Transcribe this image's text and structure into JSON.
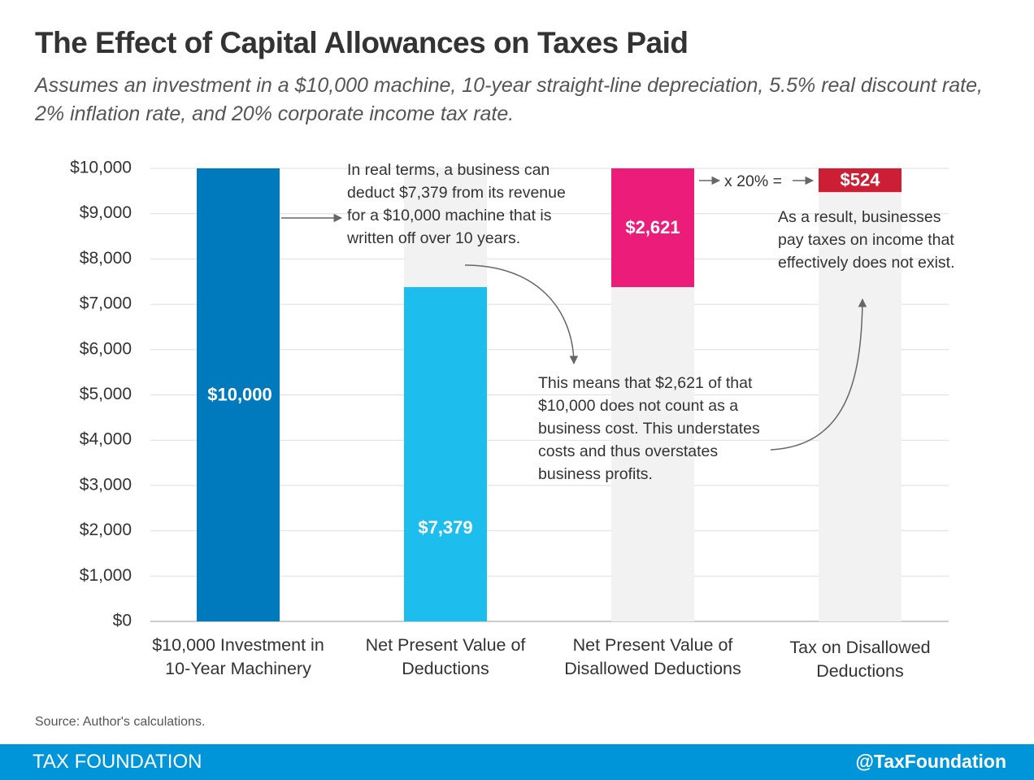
{
  "chart_data": {
    "type": "bar",
    "title": "The Effect of Capital Allowances on Taxes Paid",
    "subtitle": "Assumes an investment in a $10,000 machine, 10-year straight-line depreciation, 5.5% real discount rate, 2% inflation rate, and 20% corporate income tax rate.",
    "categories": [
      "$10,000 Investment in 10-Year Machinery",
      "Net Present Value of Deductions",
      "Net Present Value of Disallowed Deductions",
      "Tax on Disallowed Deductions"
    ],
    "values": [
      10000,
      7379,
      2621,
      524
    ],
    "value_labels": [
      "$10,000",
      "$7,379",
      "$2,621",
      "$524"
    ],
    "colors": [
      "#0079bd",
      "#1dbdee",
      "#ec1c7a",
      "#cc1f36"
    ],
    "ylim": [
      0,
      10000
    ],
    "yticks": [
      {
        "value": 0,
        "label": "$0"
      },
      {
        "value": 1000,
        "label": "$1,000"
      },
      {
        "value": 2000,
        "label": "$2,000"
      },
      {
        "value": 3000,
        "label": "$3,000"
      },
      {
        "value": 4000,
        "label": "$4,000"
      },
      {
        "value": 5000,
        "label": "$5,000"
      },
      {
        "value": 6000,
        "label": "$6,000"
      },
      {
        "value": 7000,
        "label": "$7,000"
      },
      {
        "value": 8000,
        "label": "$8,000"
      },
      {
        "value": 9000,
        "label": "$9,000"
      },
      {
        "value": 10000,
        "label": "$10,000"
      }
    ],
    "grid": true,
    "annotations": [
      "In real terms, a business can deduct $7,379 from its revenue for a $10,000 machine that is written off over 10 years.",
      "This means that $2,621 of that $10,000 does not count as a business cost. This understates costs and thus overstates business profits.",
      "As a result, businesses pay taxes on income that effectively does not exist.",
      "x 20% ="
    ],
    "source": "Source: Author's calculations."
  },
  "footer": {
    "brand": "TAX FOUNDATION",
    "handle": "@TaxFoundation"
  }
}
